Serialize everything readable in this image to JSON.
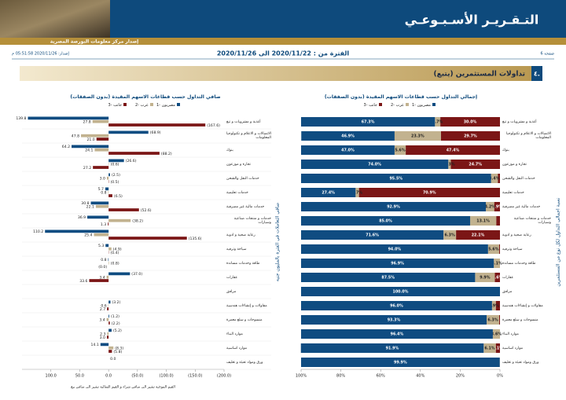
{
  "header": {
    "title": "التـقـريـر الأسـبـوعـي",
    "subtitle": "إصدار مركز معلومات البورصة المصرية",
    "issued": "إصدار: 2020/11/26 05:51:58 م",
    "period": "الفترة من : 2020/11/22 الى 2020/11/26",
    "page": "صفحة 6"
  },
  "section": {
    "number": "٤.",
    "title": "تداولات المستثمرين (يتبع)"
  },
  "chart_data": [
    {
      "type": "bar",
      "orientation": "horizontal",
      "stacked": true,
      "title": "إجمالي التداول حسب قطاعات الاسهم المقيدة (بدون الصفقات)",
      "y_label": "نسبة اجمالي التداول لكل نوع من المستثمرين",
      "categories": [
        "أغذية و مشروبات و تبغ",
        "الاتصالات و الاعلام و تكنولوجيا المعلومات",
        "بنوك",
        "تجارة و موزعون",
        "خدمات النقل والشحن",
        "خدمات تعليمية",
        "خدمات مالية غير مصرفية",
        "خدمات و منتجات صناعية وسيارات",
        "رعاية صحية و ادوية",
        "سياحة وترفيه",
        "طاقة وخدمات مساندة",
        "عقارات",
        "مرافق",
        "مقاولات و إنشاءات هندسية",
        "منسوجات و سلع معمرة",
        "موارد البناء",
        "موارد اساسية",
        "ورق ومواد تعبئة و تغليف"
      ],
      "series": [
        {
          "name": "مصريون -1",
          "color": "#0f4c81",
          "values": [
            67.3,
            46.9,
            47.0,
            74.0,
            95.5,
            27.4,
            92.9,
            85.0,
            71.6,
            94.0,
            96.9,
            87.5,
            100.0,
            96.0,
            93.3,
            96.4,
            91.9,
            99.9
          ],
          "value_labels": [
            "67.3%",
            "46.9%",
            "47.0%",
            "74.0%",
            "95.5%",
            "27.4%",
            "92.9%",
            "85.0%",
            "71.6%",
            "94.0%",
            "96.9%",
            "87.5%",
            "100.0%",
            "96.0%",
            "93.3%",
            "96.4%",
            "91.9%",
            "99.9%"
          ]
        },
        {
          "name": "عرب -2",
          "color": "#c2b28f",
          "values": [
            2.7,
            23.3,
            5.6,
            1.3,
            3.4,
            1.7,
            4.2,
            13.1,
            6.3,
            5.6,
            3.1,
            9.9,
            0,
            1.9,
            6.3,
            3.6,
            6.1,
            0.1
          ],
          "value_labels": [
            "2.7%",
            "23.3%",
            "5.6%",
            "1.3%",
            "3.4%",
            "1.7%",
            "4.2%",
            "13.1%",
            "6.3%",
            "5.6%",
            "3.1%",
            "9.9%",
            null,
            "1.9%",
            "6.3%",
            "3.6%",
            "6.1%",
            null
          ]
        },
        {
          "name": "جانب -3",
          "color": "#7b1616",
          "values": [
            30.0,
            29.7,
            47.4,
            24.7,
            1.1,
            70.9,
            2.9,
            1.9,
            22.1,
            0.4,
            0,
            2.6,
            0,
            2.1,
            0.4,
            0,
            2.1,
            0
          ],
          "value_labels": [
            "30.0%",
            "29.7%",
            "47.4%",
            "24.7%",
            null,
            "70.9%",
            "2.9%",
            null,
            "22.1%",
            null,
            null,
            "2.6%",
            null,
            null,
            null,
            null,
            "2.1%",
            null
          ]
        }
      ],
      "xlim": [
        100,
        0
      ],
      "xticks": [
        {
          "value": 100,
          "label": "100%"
        },
        {
          "value": 80,
          "label": "80%"
        },
        {
          "value": 60,
          "label": "60%"
        },
        {
          "value": 40,
          "label": "40%"
        },
        {
          "value": 20,
          "label": "20%"
        },
        {
          "value": 0,
          "label": "0%"
        }
      ]
    },
    {
      "type": "bar",
      "orientation": "horizontal",
      "stacked": false,
      "title": "صافي التداول حسب قطاعات الاسهم المقيدة (بدون الصفقات)",
      "y_label": "صافي التعاملات في الفترة بالمليون جنيه",
      "x_label": "القيم الموجبة تشير الى صافي شراء و القيم السالبة تشير الى صافي بيع",
      "categories": [
        "أغذية و مشروبات و تبغ",
        "الاتصالات و الاعلام و تكنولوجيا المعلومات",
        "بنوك",
        "تجارة و موزعون",
        "خدمات النقل والشحن",
        "خدمات تعليمية",
        "خدمات مالية غير مصرفية",
        "خدمات و منتجات صناعية وسيارات",
        "رعاية صحية و ادوية",
        "سياحة وترفيه",
        "طاقة وخدمات مساندة",
        "عقارات",
        "مرافق",
        "مقاولات و إنشاءات هندسية",
        "منسوجات و سلع معمرة",
        "موارد البناء",
        "موارد اساسية",
        "ورق ومواد تعبئة و تغليف"
      ],
      "series": [
        {
          "name": "مصريون -1",
          "color": "#0f4c81",
          "values": [
            139.8,
            -68.9,
            64.2,
            -26.6,
            -2.5,
            5.7,
            30.8,
            36.9,
            110.2,
            5.3,
            0.8,
            -37.0,
            null,
            -3.2,
            -1.2,
            -5.2,
            14.1,
            0.0
          ],
          "value_labels": [
            "139.8",
            "(68.9)",
            "64.2",
            "(26.6)",
            "(2.5)",
            "5.7",
            "30.8",
            "36.9",
            "110.2",
            "5.3",
            "0.8",
            "(37.0)",
            null,
            "(3.2)",
            "(1.2)",
            "(5.2)",
            "14.1",
            "0.0"
          ]
        },
        {
          "name": "عرب -2",
          "color": "#c2b28f",
          "values": [
            27.8,
            47.8,
            24.1,
            -0.6,
            3.0,
            0.8,
            22.1,
            -38.2,
            25.4,
            -4.9,
            -0.8,
            3.4,
            null,
            0.6,
            3.4,
            2.3,
            -8.3,
            null
          ],
          "value_labels": [
            "27.8",
            "47.8",
            "24.1",
            "(0.6)",
            "3.0",
            "0.8",
            "22.1",
            "(38.2)",
            "25.4",
            "(4.9)",
            "(0.8)",
            "3.4",
            null,
            "0.6",
            "3.4",
            "2.3",
            "(8.3)",
            null
          ]
        },
        {
          "name": "جانب -3",
          "color": "#7b1616",
          "values": [
            -167.6,
            21.0,
            -88.2,
            27.2,
            -0.5,
            -6.5,
            -52.6,
            1.3,
            -135.6,
            -0.4,
            0.0,
            33.6,
            null,
            2.7,
            -2.2,
            3.0,
            -5.8,
            null
          ],
          "value_labels": [
            "(167.6)",
            "21.0",
            "(88.2)",
            "27.2",
            "(0.5)",
            "(6.5)",
            "(52.6)",
            "1.3",
            "(135.6)",
            "(0.4)",
            "(0.0)",
            "33.6",
            null,
            "2.7",
            "(2.2)",
            "3.0",
            "(5.8)",
            null
          ]
        }
      ],
      "xlim": [
        150,
        -200
      ],
      "xticks": [
        {
          "value": 100,
          "label": "100.0"
        },
        {
          "value": 50,
          "label": "50.0"
        },
        {
          "value": 0,
          "label": "0.0"
        },
        {
          "value": -50,
          "label": "(50.0)"
        },
        {
          "value": -100,
          "label": "(100.0)"
        },
        {
          "value": -150,
          "label": "(150.0)"
        },
        {
          "value": -200,
          "label": "(200.0)"
        }
      ]
    }
  ]
}
